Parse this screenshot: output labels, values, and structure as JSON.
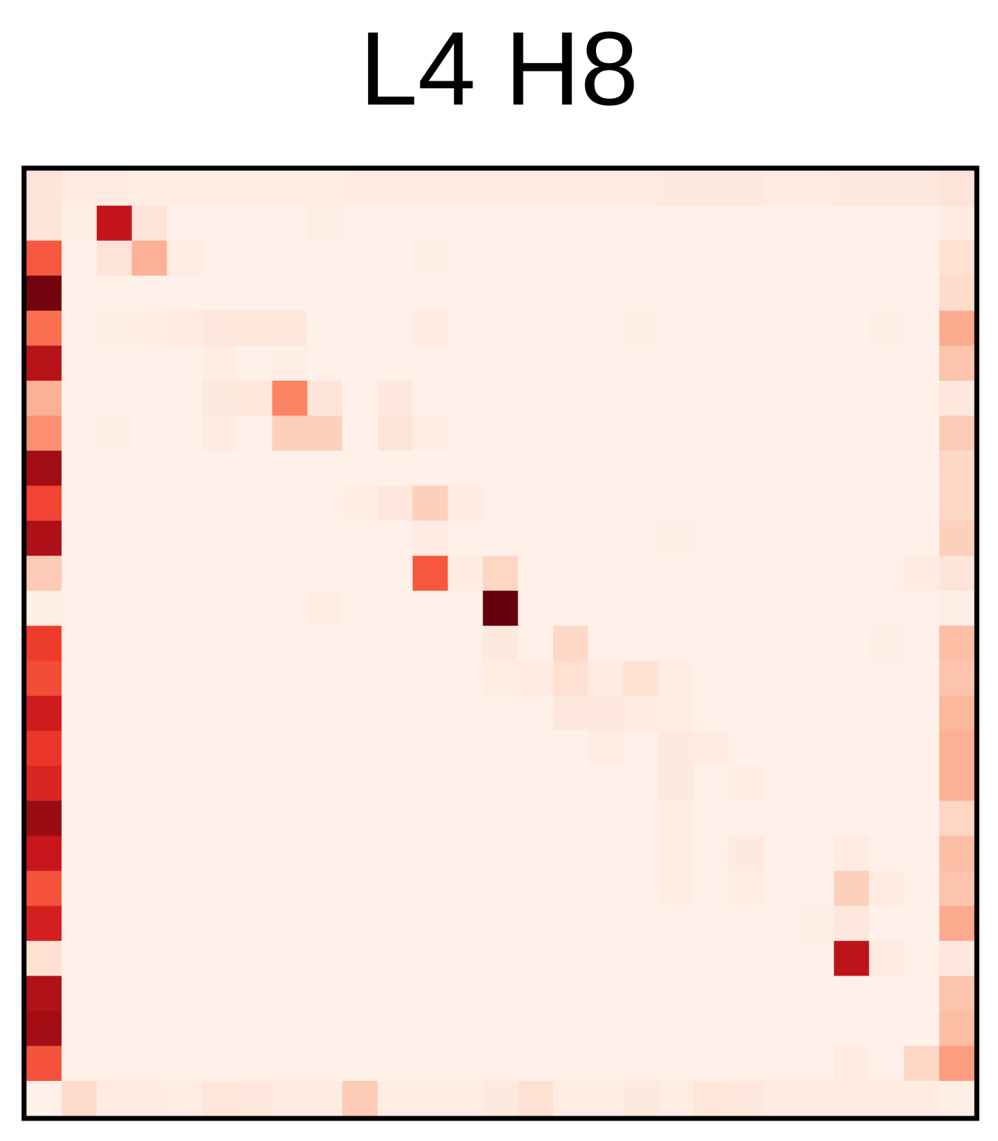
{
  "chart_data": {
    "type": "heatmap",
    "title": "L4 H8",
    "xlabel": "",
    "ylabel": "",
    "colormap": "Reds",
    "grid": false,
    "rows": 27,
    "cols": 27,
    "vmin": 0,
    "vmax": 1,
    "colorscale": [
      "#fff5f0",
      "#fee0d2",
      "#fcbba1",
      "#fc9272",
      "#fb6a4a",
      "#ef3b2c",
      "#cb181d",
      "#a50f15",
      "#67000d"
    ],
    "cells": [
      [
        0,
        0,
        0.1
      ],
      [
        0,
        1,
        0.06
      ],
      [
        0,
        2,
        0.06
      ],
      [
        0,
        3,
        0.05
      ],
      [
        0,
        4,
        0.05
      ],
      [
        0,
        5,
        0.05
      ],
      [
        0,
        6,
        0.05
      ],
      [
        0,
        7,
        0.05
      ],
      [
        0,
        8,
        0.05
      ],
      [
        0,
        9,
        0.06
      ],
      [
        0,
        10,
        0.06
      ],
      [
        0,
        11,
        0.06
      ],
      [
        0,
        12,
        0.06
      ],
      [
        0,
        13,
        0.06
      ],
      [
        0,
        14,
        0.06
      ],
      [
        0,
        15,
        0.06
      ],
      [
        0,
        16,
        0.06
      ],
      [
        0,
        17,
        0.06
      ],
      [
        0,
        18,
        0.07
      ],
      [
        0,
        19,
        0.07
      ],
      [
        0,
        20,
        0.07
      ],
      [
        0,
        21,
        0.06
      ],
      [
        0,
        22,
        0.06
      ],
      [
        0,
        23,
        0.07
      ],
      [
        0,
        24,
        0.07
      ],
      [
        0,
        25,
        0.07
      ],
      [
        0,
        26,
        0.1
      ],
      [
        1,
        0,
        0.1
      ],
      [
        1,
        1,
        0.04
      ],
      [
        1,
        2,
        0.78
      ],
      [
        1,
        3,
        0.1
      ],
      [
        1,
        8,
        0.04
      ],
      [
        1,
        26,
        0.06
      ],
      [
        2,
        0,
        0.55
      ],
      [
        2,
        2,
        0.1
      ],
      [
        2,
        3,
        0.28
      ],
      [
        2,
        4,
        0.05
      ],
      [
        2,
        11,
        0.04
      ],
      [
        2,
        26,
        0.12
      ],
      [
        3,
        0,
        0.98
      ],
      [
        3,
        26,
        0.14
      ],
      [
        4,
        0,
        0.48
      ],
      [
        4,
        2,
        0.04
      ],
      [
        4,
        3,
        0.05
      ],
      [
        4,
        4,
        0.06
      ],
      [
        4,
        5,
        0.08
      ],
      [
        4,
        6,
        0.09
      ],
      [
        4,
        7,
        0.09
      ],
      [
        4,
        11,
        0.06
      ],
      [
        4,
        17,
        0.04
      ],
      [
        4,
        24,
        0.04
      ],
      [
        4,
        26,
        0.3
      ],
      [
        5,
        0,
        0.82
      ],
      [
        5,
        5,
        0.05
      ],
      [
        5,
        7,
        0.04
      ],
      [
        5,
        26,
        0.22
      ],
      [
        6,
        0,
        0.28
      ],
      [
        6,
        5,
        0.07
      ],
      [
        6,
        6,
        0.09
      ],
      [
        6,
        7,
        0.42
      ],
      [
        6,
        8,
        0.1
      ],
      [
        6,
        10,
        0.08
      ],
      [
        6,
        26,
        0.08
      ],
      [
        7,
        0,
        0.38
      ],
      [
        7,
        2,
        0.04
      ],
      [
        7,
        5,
        0.06
      ],
      [
        7,
        7,
        0.18
      ],
      [
        7,
        8,
        0.18
      ],
      [
        7,
        10,
        0.1
      ],
      [
        7,
        11,
        0.05
      ],
      [
        7,
        26,
        0.2
      ],
      [
        8,
        0,
        0.88
      ],
      [
        8,
        26,
        0.15
      ],
      [
        9,
        0,
        0.6
      ],
      [
        9,
        9,
        0.05
      ],
      [
        9,
        10,
        0.08
      ],
      [
        9,
        11,
        0.18
      ],
      [
        9,
        12,
        0.06
      ],
      [
        9,
        26,
        0.15
      ],
      [
        10,
        0,
        0.85
      ],
      [
        10,
        11,
        0.06
      ],
      [
        10,
        18,
        0.04
      ],
      [
        10,
        26,
        0.18
      ],
      [
        11,
        0,
        0.2
      ],
      [
        11,
        11,
        0.55
      ],
      [
        11,
        12,
        0.06
      ],
      [
        11,
        13,
        0.16
      ],
      [
        11,
        25,
        0.06
      ],
      [
        11,
        26,
        0.1
      ],
      [
        12,
        0,
        0.04
      ],
      [
        12,
        8,
        0.05
      ],
      [
        12,
        13,
        1.0
      ],
      [
        12,
        26,
        0.04
      ],
      [
        13,
        0,
        0.62
      ],
      [
        13,
        13,
        0.07
      ],
      [
        13,
        15,
        0.15
      ],
      [
        13,
        24,
        0.04
      ],
      [
        13,
        26,
        0.24
      ],
      [
        14,
        0,
        0.58
      ],
      [
        14,
        13,
        0.05
      ],
      [
        14,
        14,
        0.06
      ],
      [
        14,
        15,
        0.12
      ],
      [
        14,
        16,
        0.06
      ],
      [
        14,
        17,
        0.12
      ],
      [
        14,
        18,
        0.05
      ],
      [
        14,
        26,
        0.22
      ],
      [
        15,
        0,
        0.74
      ],
      [
        15,
        15,
        0.08
      ],
      [
        15,
        16,
        0.08
      ],
      [
        15,
        17,
        0.06
      ],
      [
        15,
        18,
        0.05
      ],
      [
        15,
        26,
        0.26
      ],
      [
        16,
        0,
        0.64
      ],
      [
        16,
        16,
        0.05
      ],
      [
        16,
        18,
        0.07
      ],
      [
        16,
        19,
        0.06
      ],
      [
        16,
        26,
        0.28
      ],
      [
        17,
        0,
        0.7
      ],
      [
        17,
        18,
        0.07
      ],
      [
        17,
        20,
        0.05
      ],
      [
        17,
        26,
        0.28
      ],
      [
        18,
        0,
        0.9
      ],
      [
        18,
        18,
        0.05
      ],
      [
        18,
        26,
        0.16
      ],
      [
        19,
        0,
        0.76
      ],
      [
        19,
        18,
        0.05
      ],
      [
        19,
        20,
        0.07
      ],
      [
        19,
        23,
        0.06
      ],
      [
        19,
        26,
        0.24
      ],
      [
        20,
        0,
        0.56
      ],
      [
        20,
        18,
        0.05
      ],
      [
        20,
        20,
        0.05
      ],
      [
        20,
        23,
        0.18
      ],
      [
        20,
        24,
        0.06
      ],
      [
        20,
        26,
        0.22
      ],
      [
        21,
        0,
        0.72
      ],
      [
        21,
        22,
        0.04
      ],
      [
        21,
        23,
        0.08
      ],
      [
        21,
        26,
        0.3
      ],
      [
        22,
        0,
        0.12
      ],
      [
        22,
        23,
        0.8
      ],
      [
        22,
        24,
        0.06
      ],
      [
        22,
        26,
        0.08
      ],
      [
        23,
        0,
        0.84
      ],
      [
        23,
        26,
        0.22
      ],
      [
        24,
        0,
        0.88
      ],
      [
        24,
        26,
        0.24
      ],
      [
        25,
        0,
        0.56
      ],
      [
        25,
        23,
        0.06
      ],
      [
        25,
        25,
        0.16
      ],
      [
        25,
        26,
        0.34
      ],
      [
        26,
        0,
        0.03
      ],
      [
        26,
        1,
        0.14
      ],
      [
        26,
        2,
        0.06
      ],
      [
        26,
        3,
        0.06
      ],
      [
        26,
        4,
        0.05
      ],
      [
        26,
        5,
        0.09
      ],
      [
        26,
        6,
        0.08
      ],
      [
        26,
        7,
        0.06
      ],
      [
        26,
        8,
        0.06
      ],
      [
        26,
        9,
        0.2
      ],
      [
        26,
        10,
        0.05
      ],
      [
        26,
        11,
        0.05
      ],
      [
        26,
        12,
        0.05
      ],
      [
        26,
        13,
        0.07
      ],
      [
        26,
        14,
        0.12
      ],
      [
        26,
        15,
        0.05
      ],
      [
        26,
        16,
        0.05
      ],
      [
        26,
        17,
        0.07
      ],
      [
        26,
        18,
        0.05
      ],
      [
        26,
        19,
        0.09
      ],
      [
        26,
        20,
        0.08
      ],
      [
        26,
        21,
        0.06
      ],
      [
        26,
        22,
        0.06
      ],
      [
        26,
        23,
        0.06
      ],
      [
        26,
        24,
        0.06
      ],
      [
        26,
        25,
        0.06
      ],
      [
        26,
        26,
        0.04
      ]
    ]
  }
}
